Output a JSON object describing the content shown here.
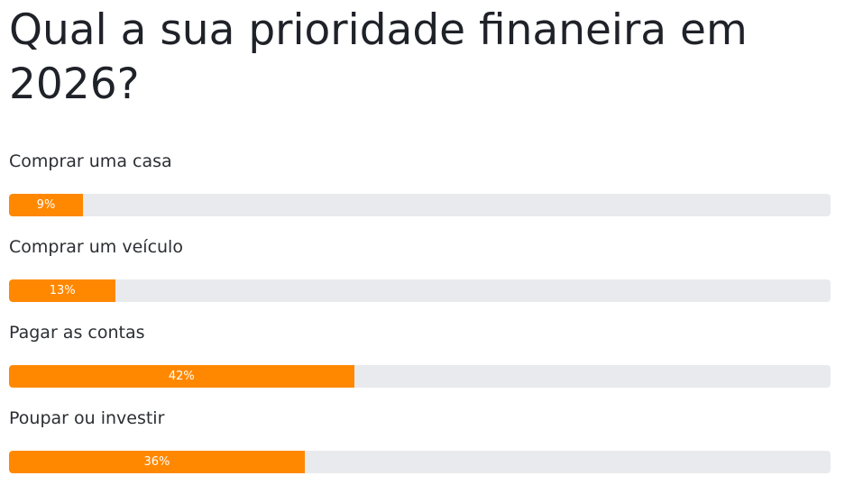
{
  "chart_data": {
    "type": "bar",
    "title": "Qual a sua prioridade finaneira em 2026?",
    "categories": [
      "Comprar uma casa",
      "Comprar um veículo",
      "Pagar as contas",
      "Poupar ou investir"
    ],
    "values": [
      9,
      13,
      42,
      36
    ],
    "value_labels": [
      "9%",
      "13%",
      "42%",
      "36%"
    ],
    "color": "#ff8800",
    "xlim": [
      0,
      100
    ]
  }
}
